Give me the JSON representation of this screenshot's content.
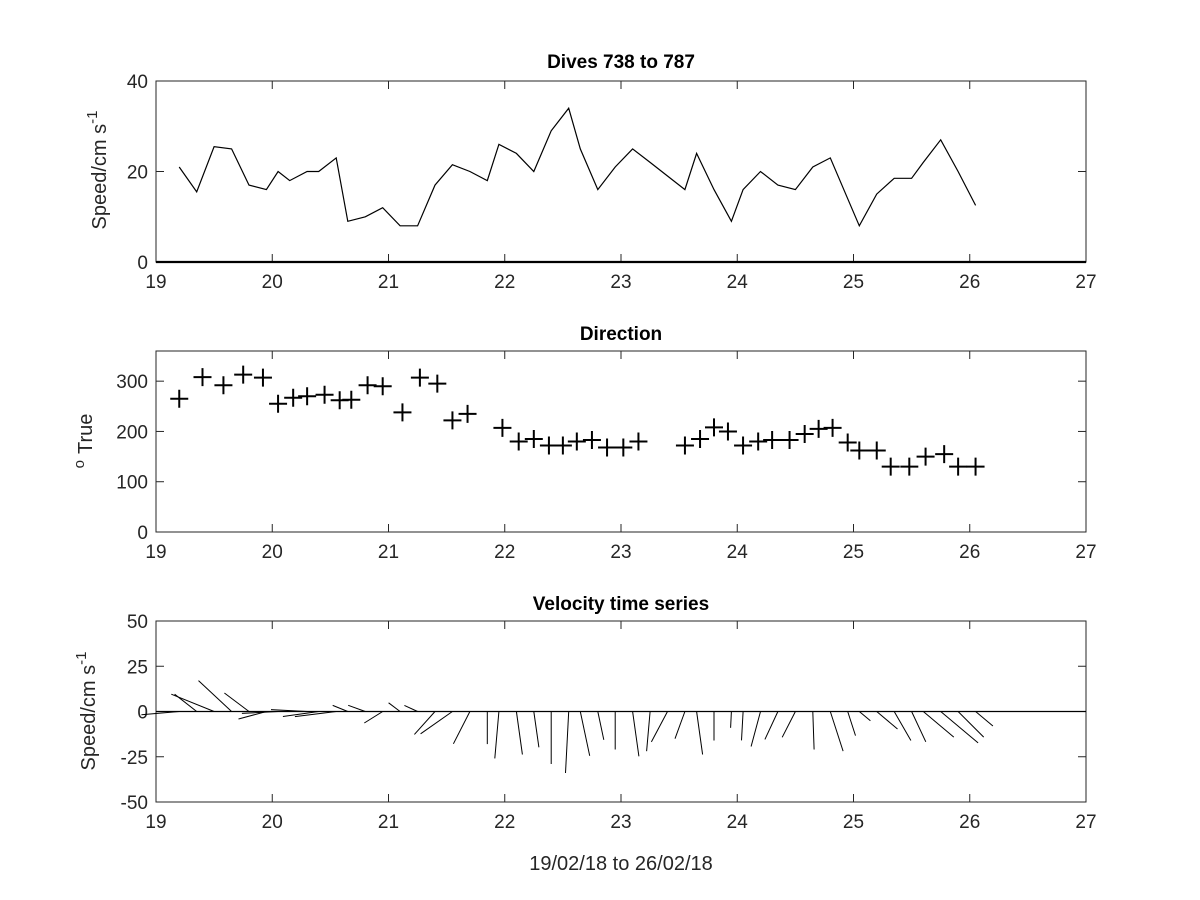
{
  "chart_data": [
    {
      "type": "line",
      "title": "Dives 738 to 787",
      "ylabel": "Speed/cm s",
      "ylabel_superscript": "-1",
      "xlim": [
        19,
        27
      ],
      "ylim": [
        0,
        40
      ],
      "xticks": [
        "19",
        "20",
        "21",
        "22",
        "23",
        "24",
        "25",
        "26",
        "27"
      ],
      "yticks": [
        "0",
        "20",
        "40"
      ],
      "series": [
        {
          "x": [
            19.2,
            19.35,
            19.5,
            19.65,
            19.8,
            19.95,
            20.05,
            20.15,
            20.3,
            20.4,
            20.55,
            20.65,
            20.8,
            20.95,
            21.1,
            21.25,
            21.4,
            21.55,
            21.7,
            21.85,
            21.95,
            22.1,
            22.25,
            22.4,
            22.55,
            22.65,
            22.8,
            22.95,
            23.1,
            23.25,
            23.4,
            23.55,
            23.65,
            23.8,
            23.95,
            24.05,
            24.2,
            24.35,
            24.5,
            24.65,
            24.8,
            24.95,
            25.05,
            25.2,
            25.35,
            25.5,
            25.6,
            25.75,
            25.9,
            26.05
          ],
          "y": [
            21,
            15.5,
            25.5,
            25,
            17,
            16,
            20,
            18,
            20,
            20,
            23,
            9,
            10,
            12,
            8,
            8,
            17,
            21.5,
            20,
            18,
            26,
            24,
            20,
            29,
            34,
            25,
            16,
            21,
            25,
            22,
            19,
            16,
            24,
            16,
            9,
            16,
            20,
            17,
            16,
            21,
            23,
            14,
            8,
            15,
            18.5,
            18.5,
            22,
            27,
            20,
            12.5
          ]
        }
      ]
    },
    {
      "type": "scatter",
      "title": "Direction",
      "ylabel": "True",
      "ylabel_prefix": "o",
      "xlim": [
        19,
        27
      ],
      "ylim": [
        0,
        360
      ],
      "xticks": [
        "19",
        "20",
        "21",
        "22",
        "23",
        "24",
        "25",
        "26",
        "27"
      ],
      "yticks": [
        "0",
        "100",
        "200",
        "300"
      ],
      "series": [
        {
          "x": [
            19.2,
            19.4,
            19.58,
            19.75,
            19.92,
            20.05,
            20.18,
            20.3,
            20.45,
            20.58,
            20.68,
            20.82,
            20.95,
            21.12,
            21.27,
            21.42,
            21.55,
            21.68,
            21.98,
            22.12,
            22.25,
            22.38,
            22.5,
            22.62,
            22.75,
            22.88,
            23.02,
            23.15,
            23.55,
            23.68,
            23.8,
            23.92,
            24.05,
            24.18,
            24.3,
            24.45,
            24.58,
            24.7,
            24.82,
            24.95,
            25.05,
            25.2,
            25.32,
            25.48,
            25.62,
            25.78,
            25.9,
            26.05
          ],
          "y": [
            265,
            308,
            292,
            313,
            307,
            255,
            267,
            270,
            273,
            262,
            263,
            292,
            290,
            238,
            307,
            295,
            222,
            235,
            207,
            180,
            185,
            172,
            172,
            180,
            183,
            168,
            168,
            180,
            172,
            185,
            208,
            200,
            172,
            180,
            183,
            183,
            195,
            205,
            207,
            178,
            162,
            162,
            130,
            130,
            150,
            155,
            130,
            130
          ]
        }
      ]
    },
    {
      "type": "vector",
      "title": "Velocity time series",
      "ylabel": "Speed/cm s",
      "ylabel_superscript": "-1",
      "xlabel": "19/02/18 to 26/02/18",
      "xlim": [
        19,
        27
      ],
      "ylim": [
        -50,
        50
      ],
      "xticks": [
        "19",
        "20",
        "21",
        "22",
        "23",
        "24",
        "25",
        "26",
        "27"
      ],
      "yticks": [
        "-50",
        "-25",
        "0",
        "25",
        "50"
      ],
      "baseline": 0,
      "series": [
        {
          "x": [
            19.2,
            19.35,
            19.5,
            19.65,
            19.8,
            19.95,
            20.05,
            20.15,
            20.3,
            20.4,
            20.55,
            20.65,
            20.8,
            20.95,
            21.1,
            21.25,
            21.4,
            21.55,
            21.7,
            21.85,
            21.95,
            22.1,
            22.25,
            22.4,
            22.55,
            22.65,
            22.8,
            22.95,
            23.1,
            23.25,
            23.4,
            23.55,
            23.65,
            23.8,
            23.95,
            24.05,
            24.2,
            24.35,
            24.5,
            24.65,
            24.8,
            24.95,
            25.05,
            25.2,
            25.35,
            25.5,
            25.6,
            25.75,
            25.9,
            26.05
          ],
          "speed": [
            21,
            15.5,
            25.5,
            25,
            17,
            16,
            20,
            18,
            20,
            20,
            23,
            9,
            10,
            12,
            8,
            8,
            17,
            21.5,
            20,
            18,
            26,
            24,
            20,
            29,
            34,
            25,
            16,
            21,
            25,
            22,
            19,
            16,
            24,
            16,
            9,
            16,
            20,
            17,
            16,
            21,
            23,
            14,
            8,
            15,
            18.5,
            18.5,
            22,
            27,
            20,
            12.5
          ],
          "direction": [
            265,
            308,
            292,
            313,
            307,
            255,
            267,
            270,
            273,
            262,
            263,
            292,
            290,
            238,
            307,
            295,
            222,
            235,
            207,
            180,
            185,
            172,
            172,
            180,
            183,
            168,
            168,
            180,
            172,
            185,
            208,
            200,
            172,
            180,
            183,
            183,
            195,
            205,
            207,
            178,
            162,
            162,
            130,
            130,
            150,
            155,
            130,
            130,
            135,
            130
          ]
        }
      ]
    }
  ]
}
